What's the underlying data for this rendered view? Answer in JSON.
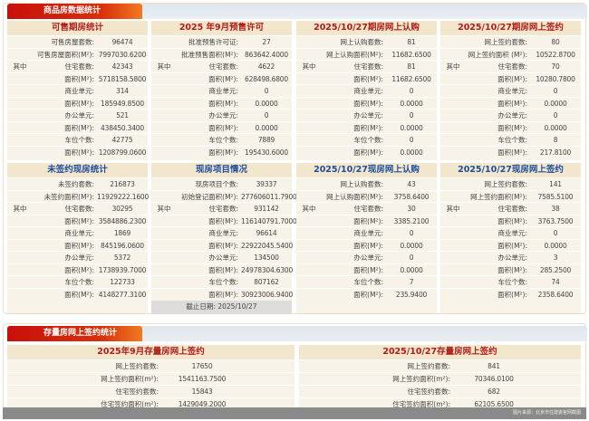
{
  "section1": {
    "title": "商品房数据统计"
  },
  "cards": [
    {
      "title": "可售期房统计",
      "color": "red",
      "rows": [
        [
          "",
          "可售房屋套数:",
          "96474"
        ],
        [
          "",
          "可售房屋面积(M²):",
          "7997030.6200"
        ],
        [
          "其中",
          "住宅套数:",
          "42343"
        ],
        [
          "",
          "面积(M²):",
          "5718158.5800"
        ],
        [
          "",
          "商业单元:",
          "314"
        ],
        [
          "",
          "面积(M²):",
          "185949.8500"
        ],
        [
          "",
          "办公单元:",
          "521"
        ],
        [
          "",
          "面积(M²):",
          "438450.3400"
        ],
        [
          "",
          "车位个数:",
          "42775"
        ],
        [
          "",
          "面积(M²):",
          "1208799.0600"
        ]
      ]
    },
    {
      "title": "2025 年9月预售许可",
      "color": "red",
      "rows": [
        [
          "",
          "批准预售许可证:",
          "27"
        ],
        [
          "",
          "批准预售面积(M²):",
          "863642.4000"
        ],
        [
          "其中",
          "住宅套数:",
          "4622"
        ],
        [
          "",
          "面积(M²):",
          "628498.6800"
        ],
        [
          "",
          "商业单元:",
          "0"
        ],
        [
          "",
          "面积(M²):",
          "0.0000"
        ],
        [
          "",
          "办公单元:",
          "0"
        ],
        [
          "",
          "面积(M²):",
          "0.0000"
        ],
        [
          "",
          "车位个数:",
          "7889"
        ],
        [
          "",
          "面积(M²):",
          "195430.6000"
        ]
      ]
    },
    {
      "title": "2025/10/27期房网上认购",
      "color": "red",
      "rows": [
        [
          "",
          "网上认购套数:",
          "81"
        ],
        [
          "",
          "网上认购面积(M²):",
          "11682.6500"
        ],
        [
          "其中",
          "住宅套数:",
          "81"
        ],
        [
          "",
          "面积(M²):",
          "11682.6500"
        ],
        [
          "",
          "商业单元:",
          "0"
        ],
        [
          "",
          "面积(M²):",
          "0.0000"
        ],
        [
          "",
          "办公单元:",
          "0"
        ],
        [
          "",
          "面积(M²):",
          "0.0000"
        ],
        [
          "",
          "车位个数:",
          "0"
        ],
        [
          "",
          "面积(M²):",
          "0.0000"
        ]
      ]
    },
    {
      "title": "2025/10/27期房网上签约",
      "color": "red",
      "rows": [
        [
          "",
          "网上签约套数:",
          "80"
        ],
        [
          "",
          "网上签约面积 (M²):",
          "10522.8700"
        ],
        [
          "其中",
          "住宅套数:",
          "70"
        ],
        [
          "",
          "面积(M²):",
          "10280.7800"
        ],
        [
          "",
          "商业单元:",
          "0"
        ],
        [
          "",
          "面积(M²):",
          "0.0000"
        ],
        [
          "",
          "办公单元:",
          "0"
        ],
        [
          "",
          "面积(M²):",
          "0.0000"
        ],
        [
          "",
          "车位个数:",
          "8"
        ],
        [
          "",
          "面积(M²):",
          "217.8100"
        ]
      ]
    },
    {
      "title": "未签约现房统计",
      "color": "blue",
      "rows": [
        [
          "",
          "未签约套数:",
          "216873"
        ],
        [
          "",
          "未签约面积(M²):",
          "11929222.1600"
        ],
        [
          "其中",
          "住宅套数:",
          "30295"
        ],
        [
          "",
          "面积(M²):",
          "3584886.2300"
        ],
        [
          "",
          "商业单元:",
          "1869"
        ],
        [
          "",
          "面积(M²):",
          "845196.0600"
        ],
        [
          "",
          "办公单元:",
          "5372"
        ],
        [
          "",
          "面积(M²):",
          "1738939.7000"
        ],
        [
          "",
          "车位个数:",
          "122733"
        ],
        [
          "",
          "面积(M²):",
          "4148277.3100"
        ]
      ]
    },
    {
      "title": "现房项目情况",
      "color": "blue",
      "footer": "截止日期: 2025/10/27",
      "rows": [
        [
          "",
          "现房项目个数:",
          "39337"
        ],
        [
          "",
          "初始登记面积(M²):",
          "277606011.7900"
        ],
        [
          "其中",
          "住宅套数:",
          "931142"
        ],
        [
          "",
          "面积(M²):",
          "116140791.7000"
        ],
        [
          "",
          "商业单元:",
          "96614"
        ],
        [
          "",
          "面积(M²):",
          "22922045.5400"
        ],
        [
          "",
          "办公单元:",
          "134500"
        ],
        [
          "",
          "面积(M²):",
          "24978304.6300"
        ],
        [
          "",
          "车位个数:",
          "807162"
        ],
        [
          "",
          "面积(M²):",
          "30923006.9400"
        ]
      ]
    },
    {
      "title": "2025/10/27现房网上认购",
      "color": "blue",
      "rows": [
        [
          "",
          "网上认购套数:",
          "43"
        ],
        [
          "",
          "网上认购面积(M²):",
          "3758.6400"
        ],
        [
          "其中",
          "住宅套数:",
          "30"
        ],
        [
          "",
          "面积(M²):",
          "3385.2100"
        ],
        [
          "",
          "商业单元:",
          "0"
        ],
        [
          "",
          "面积(M²):",
          "0.0000"
        ],
        [
          "",
          "办公单元:",
          "0"
        ],
        [
          "",
          "面积(M²):",
          "0.0000"
        ],
        [
          "",
          "车位个数:",
          "7"
        ],
        [
          "",
          "面积(M²):",
          "235.9400"
        ]
      ]
    },
    {
      "title": "2025/10/27现房网上签约",
      "color": "blue",
      "rows": [
        [
          "",
          "网上签约套数:",
          "141"
        ],
        [
          "",
          "网上签约面积(M²):",
          "7585.5100"
        ],
        [
          "其中",
          "住宅套数:",
          "38"
        ],
        [
          "",
          "面积(M²):",
          "3763.7500"
        ],
        [
          "",
          "商业单元:",
          "0"
        ],
        [
          "",
          "面积(M²):",
          "0.0000"
        ],
        [
          "",
          "办公单元:",
          "3"
        ],
        [
          "",
          "面积(M²):",
          "285.2500"
        ],
        [
          "",
          "车位个数:",
          "74"
        ],
        [
          "",
          "面积(M²):",
          "2358.6400"
        ]
      ]
    }
  ],
  "section2": {
    "title": "存量房网上签约统计"
  },
  "cards2": [
    {
      "title": "2025年9月存量房网上签约",
      "color": "red",
      "rows": [
        [
          "",
          "网上签约套数:",
          "17650"
        ],
        [
          "",
          "网上签约面积(m²):",
          "1541163.7500"
        ],
        [
          "",
          "住宅签约套数:",
          "15843"
        ],
        [
          "",
          "住宅签约面积(m²):",
          "1429049.2000"
        ]
      ]
    },
    {
      "title": "2025/10/27存量房网上签约",
      "color": "red",
      "rows": [
        [
          "",
          "网上签约套数:",
          "841"
        ],
        [
          "",
          "网上签约面积(m²):",
          "70346.0100"
        ],
        [
          "",
          "住宅签约套数:",
          "682"
        ],
        [
          "",
          "住宅签约面积(m²):",
          "62105.6500"
        ]
      ]
    }
  ],
  "source": "图片来源：北京市住建委官网截图"
}
